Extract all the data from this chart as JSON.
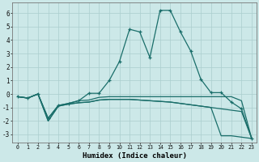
{
  "xlabel": "Humidex (Indice chaleur)",
  "bg_color": "#cce8e8",
  "line_color": "#1a6e6a",
  "grid_color": "#aacece",
  "xlim": [
    -0.5,
    23.5
  ],
  "ylim": [
    -3.6,
    6.8
  ],
  "xtick_labels": [
    "0",
    "1",
    "2",
    "3",
    "4",
    "5",
    "6",
    "7",
    "8",
    "9",
    "10",
    "11",
    "12",
    "13",
    "14",
    "15",
    "16",
    "17",
    "18",
    "19",
    "20",
    "21",
    "22",
    "23"
  ],
  "series1_x": [
    0,
    1,
    2,
    3,
    4,
    5,
    6,
    7,
    8,
    9,
    10,
    11,
    12,
    13,
    14,
    15,
    16,
    17,
    18,
    19,
    20,
    21,
    22,
    23
  ],
  "series1_y": [
    -0.2,
    -0.3,
    0.0,
    -1.8,
    -0.85,
    -0.7,
    -0.5,
    0.05,
    0.05,
    1.0,
    2.4,
    4.8,
    4.6,
    2.7,
    6.2,
    6.2,
    4.6,
    3.2,
    1.1,
    0.1,
    0.1,
    -0.6,
    -1.1,
    -3.3
  ],
  "series2_x": [
    0,
    1,
    2,
    3,
    4,
    5,
    6,
    7,
    8,
    9,
    10,
    11,
    12,
    13,
    14,
    15,
    16,
    17,
    18,
    19,
    20,
    21,
    22,
    23
  ],
  "series2_y": [
    -0.2,
    -0.3,
    0.0,
    -1.8,
    -0.85,
    -0.7,
    -0.5,
    -0.45,
    -0.25,
    -0.2,
    -0.2,
    -0.2,
    -0.2,
    -0.2,
    -0.2,
    -0.2,
    -0.2,
    -0.2,
    -0.2,
    -0.2,
    -0.2,
    -0.2,
    -0.5,
    -3.3
  ],
  "series3_x": [
    0,
    1,
    2,
    3,
    4,
    5,
    6,
    7,
    8,
    9,
    10,
    11,
    12,
    13,
    14,
    15,
    16,
    17,
    18,
    19,
    20,
    21,
    22,
    23
  ],
  "series3_y": [
    -0.2,
    -0.3,
    0.0,
    -2.0,
    -0.9,
    -0.75,
    -0.65,
    -0.6,
    -0.45,
    -0.4,
    -0.4,
    -0.4,
    -0.45,
    -0.5,
    -0.55,
    -0.6,
    -0.7,
    -0.8,
    -0.9,
    -1.0,
    -3.1,
    -3.1,
    -3.2,
    -3.3
  ],
  "series4_x": [
    0,
    1,
    2,
    3,
    4,
    5,
    6,
    7,
    8,
    9,
    10,
    11,
    12,
    13,
    14,
    15,
    16,
    17,
    18,
    19,
    20,
    21,
    22,
    23
  ],
  "series4_y": [
    -0.2,
    -0.3,
    0.0,
    -2.0,
    -0.9,
    -0.75,
    -0.65,
    -0.6,
    -0.45,
    -0.4,
    -0.4,
    -0.4,
    -0.45,
    -0.5,
    -0.55,
    -0.6,
    -0.7,
    -0.8,
    -0.9,
    -1.0,
    -1.1,
    -1.2,
    -1.3,
    -3.3
  ],
  "yticks": [
    -3,
    -2,
    -1,
    0,
    1,
    2,
    3,
    4,
    5,
    6
  ]
}
